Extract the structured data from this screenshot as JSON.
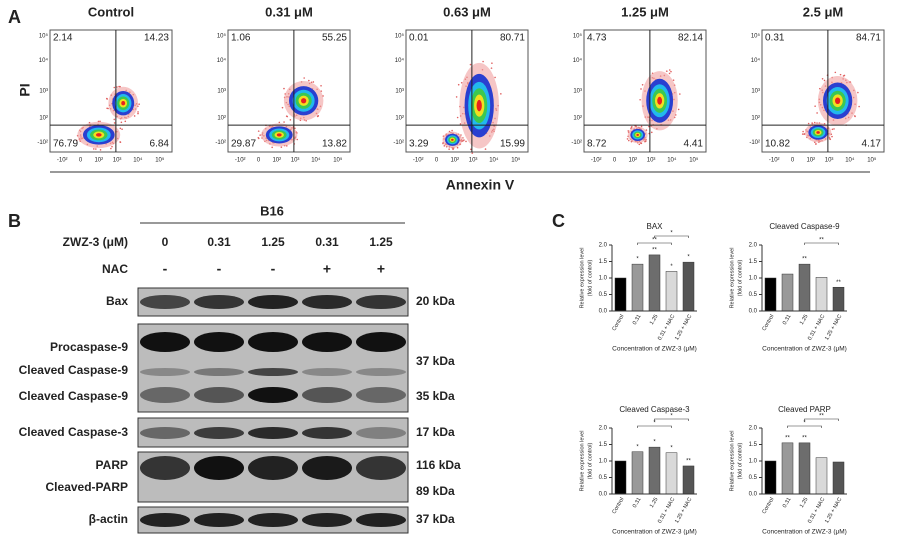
{
  "panel_a": {
    "label": "A",
    "y_label": "PI",
    "x_label": "Annexin V",
    "x_ticks": [
      "-10²",
      "0",
      "10²",
      "10³",
      "10⁴",
      "10⁵"
    ],
    "y_ticks": [
      "10⁵",
      "10⁴",
      "10³",
      "10²",
      "-10²"
    ],
    "plots": [
      {
        "title": "Control",
        "ul": 2.14,
        "ur": 14.23,
        "ll": 76.79,
        "lr": 6.84
      },
      {
        "title": "0.31 μM",
        "ul": 1.06,
        "ur": 55.25,
        "ll": 29.87,
        "lr": 13.82
      },
      {
        "title": "0.63 μM",
        "ul": 0.01,
        "ur": 80.71,
        "ll": 3.29,
        "lr": 15.99
      },
      {
        "title": "1.25 μM",
        "ul": 4.73,
        "ur": 82.14,
        "ll": 8.72,
        "lr": 4.41
      },
      {
        "title": "2.5 μM",
        "ul": 0.31,
        "ur": 84.71,
        "ll": 10.82,
        "lr": 4.17
      }
    ]
  },
  "panel_b": {
    "label": "B",
    "cell_line": "B16",
    "dose_label": "ZWZ-3 (μM)",
    "doses": [
      "0",
      "0.31",
      "1.25",
      "0.31",
      "1.25"
    ],
    "nac_label": "NAC",
    "nac": [
      "-",
      "-",
      "-",
      "+",
      "+"
    ],
    "blots": [
      {
        "labels": [
          "Bax"
        ],
        "kda": [
          "20 kDa"
        ]
      },
      {
        "labels": [
          "Procaspase-9",
          "Cleaved Caspase-9",
          "Cleaved Caspase-9"
        ],
        "kda": [
          "37 kDa",
          "35 kDa"
        ]
      },
      {
        "labels": [
          "Cleaved Caspase-3"
        ],
        "kda": [
          "17 kDa"
        ]
      },
      {
        "labels": [
          "PARP",
          "Cleaved-PARP"
        ],
        "kda": [
          "116 kDa",
          "89 kDa"
        ]
      },
      {
        "labels": [
          "β-actin"
        ],
        "kda": [
          "37 kDa"
        ]
      }
    ]
  },
  "panel_c": {
    "label": "C",
    "charts": [
      {
        "type": "bar",
        "title": "BAX",
        "y_label": [
          "Relative expression level",
          "(fold of control)"
        ],
        "x_label": "Concentration of ZWZ-3 (μM)",
        "categories": [
          "Control",
          "0.31",
          "1.25",
          "0.31 + NAC",
          "1.25 + NAC"
        ],
        "values": [
          1.0,
          1.42,
          1.7,
          1.2,
          1.48
        ],
        "colors": [
          "#000000",
          "#999999",
          "#6d6d6d",
          "#d9d9d9",
          "#555555"
        ],
        "ylim": [
          0,
          2
        ],
        "yticks": [
          {
            "value": 0,
            "label": "0.0"
          },
          {
            "value": 0.5,
            "label": "0.5"
          },
          {
            "value": 1,
            "label": "1.0"
          },
          {
            "value": 1.5,
            "label": "1.5"
          },
          {
            "value": 2,
            "label": "2.0"
          }
        ],
        "bar_labels": [
          null,
          "*",
          "**",
          "*",
          "*"
        ],
        "brackets": [
          {
            "from": 1,
            "to": 3,
            "label": "**"
          },
          {
            "from": 2,
            "to": 4,
            "label": "*"
          }
        ]
      },
      {
        "type": "bar",
        "title": "Cleaved Caspase-9",
        "y_label": [
          "Relative expression level",
          "(fold of control)"
        ],
        "x_label": "Concentration of ZWZ-3 (μM)",
        "categories": [
          "Control",
          "0.31",
          "1.25",
          "0.31 + NAC",
          "1.25 + NAC"
        ],
        "values": [
          1.0,
          1.12,
          1.42,
          1.02,
          0.72
        ],
        "colors": [
          "#000000",
          "#999999",
          "#6d6d6d",
          "#d9d9d9",
          "#555555"
        ],
        "ylim": [
          0,
          2
        ],
        "yticks": [
          {
            "value": 0,
            "label": "0.0"
          },
          {
            "value": 0.5,
            "label": "0.5"
          },
          {
            "value": 1,
            "label": "1.0"
          },
          {
            "value": 1.5,
            "label": "1.5"
          },
          {
            "value": 2,
            "label": "2.0"
          }
        ],
        "bar_labels": [
          null,
          null,
          "**",
          null,
          "**"
        ],
        "brackets": [
          {
            "from": 2,
            "to": 4,
            "label": "**"
          }
        ]
      },
      {
        "type": "bar",
        "title": "Cleaved Caspase-3",
        "y_label": [
          "Relative expression level",
          "(fold of control)"
        ],
        "x_label": "Concentration of ZWZ-3 (μM)",
        "categories": [
          "Control",
          "0.31",
          "1.25",
          "0.31 + NAC",
          "1.25 + NAC"
        ],
        "values": [
          1.0,
          1.28,
          1.42,
          1.25,
          0.85
        ],
        "colors": [
          "#000000",
          "#999999",
          "#6d6d6d",
          "#d9d9d9",
          "#555555"
        ],
        "ylim": [
          0,
          2
        ],
        "yticks": [
          {
            "value": 0,
            "label": "0.0"
          },
          {
            "value": 0.5,
            "label": "0.5"
          },
          {
            "value": 1,
            "label": "1.0"
          },
          {
            "value": 1.5,
            "label": "1.5"
          },
          {
            "value": 2,
            "label": "2.0"
          }
        ],
        "bar_labels": [
          null,
          "*",
          "*",
          "*",
          "**"
        ],
        "brackets": [
          {
            "from": 1,
            "to": 3,
            "label": "*"
          },
          {
            "from": 2,
            "to": 4,
            "label": "*"
          }
        ]
      },
      {
        "type": "bar",
        "title": "Cleaved PARP",
        "y_label": [
          "Relative expression level",
          "(fold of control)"
        ],
        "x_label": "Concentration of ZWZ-3 (μM)",
        "categories": [
          "Control",
          "0.31",
          "1.25",
          "0.31 + NAC",
          "1.25 + NAC"
        ],
        "values": [
          1.0,
          1.55,
          1.55,
          1.1,
          0.97
        ],
        "colors": [
          "#000000",
          "#999999",
          "#6d6d6d",
          "#d9d9d9",
          "#555555"
        ],
        "ylim": [
          0,
          2
        ],
        "yticks": [
          {
            "value": 0,
            "label": "0.0"
          },
          {
            "value": 0.5,
            "label": "0.5"
          },
          {
            "value": 1,
            "label": "1.0"
          },
          {
            "value": 1.5,
            "label": "1.5"
          },
          {
            "value": 2,
            "label": "2.0"
          }
        ],
        "bar_labels": [
          null,
          "**",
          "**",
          null,
          null
        ],
        "brackets": [
          {
            "from": 1,
            "to": 3,
            "label": "*"
          },
          {
            "from": 2,
            "to": 4,
            "label": "**"
          }
        ]
      }
    ]
  }
}
